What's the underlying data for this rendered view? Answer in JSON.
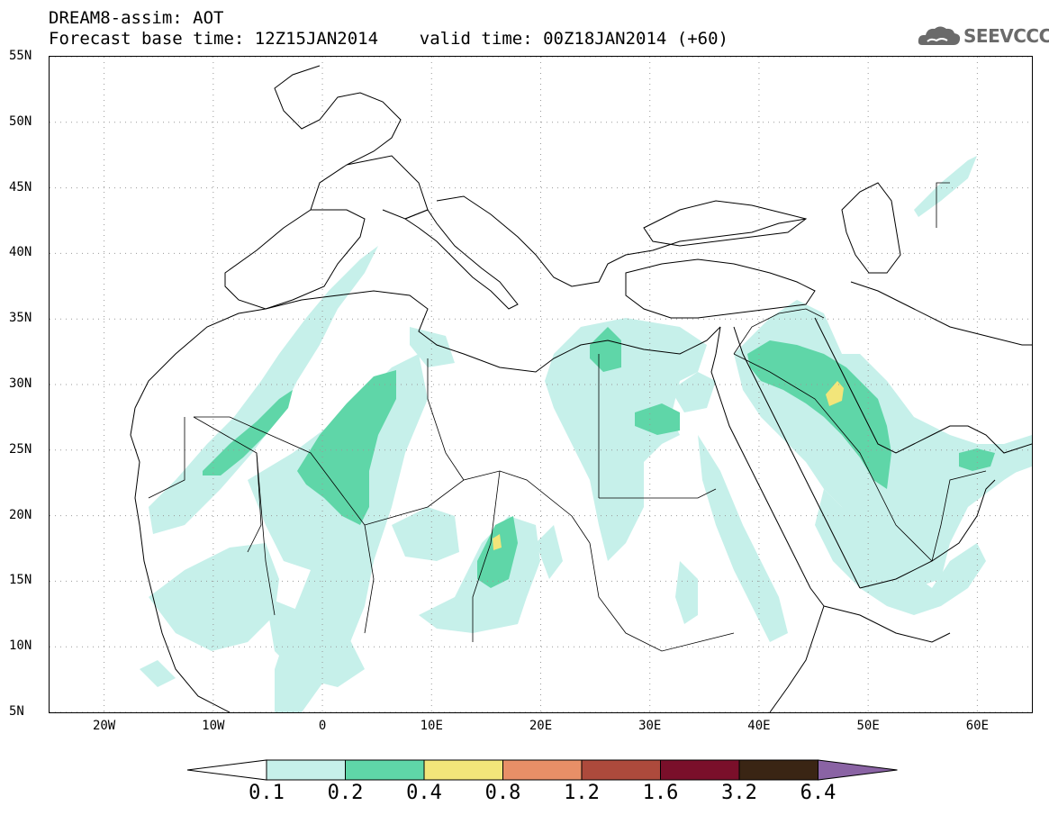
{
  "header": {
    "title": "DREAM8-assim: AOT",
    "subtitle": "Forecast base time: 12Z15JAN2014    valid time: 00Z18JAN2014 (+60)"
  },
  "logo": {
    "text": "SEEVCCC",
    "icon": "cloud-icon"
  },
  "map": {
    "lon_range": [
      -25,
      65
    ],
    "lat_range": [
      5,
      55
    ],
    "gridlines": "dotted",
    "lat_labels": [
      "55N",
      "50N",
      "45N",
      "40N",
      "35N",
      "30N",
      "25N",
      "20N",
      "15N",
      "10N",
      "5N"
    ],
    "lat_values": [
      55,
      50,
      45,
      40,
      35,
      30,
      25,
      20,
      15,
      10,
      5
    ],
    "lon_labels": [
      "20W",
      "10W",
      "0",
      "10E",
      "20E",
      "30E",
      "40E",
      "50E",
      "60E"
    ],
    "lon_values": [
      -20,
      -10,
      0,
      10,
      20,
      30,
      40,
      50,
      60
    ]
  },
  "colorbar": {
    "labels": [
      "0.1",
      "0.2",
      "0.4",
      "0.8",
      "1.2",
      "1.6",
      "3.2",
      "6.4"
    ],
    "colors": [
      "#ffffff",
      "#c6f0ea",
      "#5fd6a8",
      "#f2e57a",
      "#e88f67",
      "#ad4a3c",
      "#7a0f2a",
      "#3a2514",
      "#8a63a4"
    ]
  },
  "colors": {
    "aot_01_02": "#c6f0ea",
    "aot_02_04": "#5fd6a8",
    "aot_04_08": "#f2e57a",
    "coastline": "#000000"
  }
}
